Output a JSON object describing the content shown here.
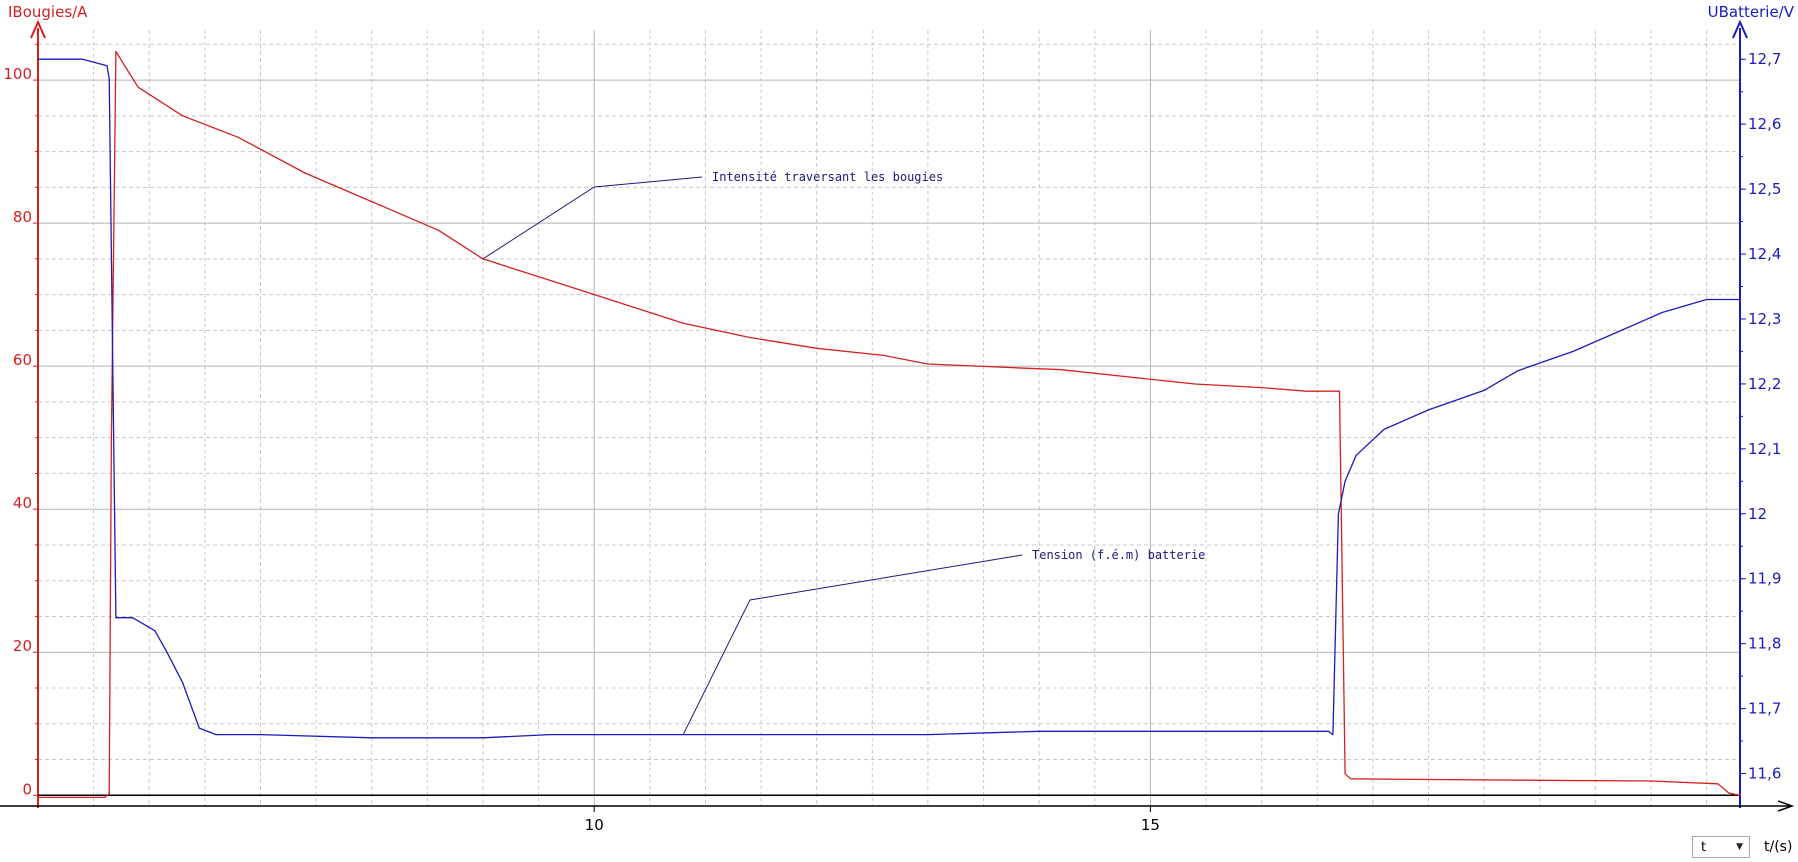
{
  "colors": {
    "current": "#d42020",
    "voltage": "#1b1bbf",
    "annotation": "#1a1a7a",
    "grid_major": "#b4b4b4",
    "grid_minor": "#c8c8c8",
    "axis": "#000000"
  },
  "x_selector": {
    "value": "t",
    "unit_label": "t/(s)"
  },
  "chart_data": {
    "type": "line",
    "left_axis": {
      "label": "IBougies/A",
      "ticks": [
        0,
        20,
        40,
        60,
        80,
        100
      ],
      "ylim": [
        -1.5,
        107
      ],
      "color": "#d42020"
    },
    "right_axis": {
      "label": "UBatterie/V",
      "ticks": [
        "11,6",
        "11,7",
        "11,8",
        "11,9",
        "12",
        "12,1",
        "12,2",
        "12,3",
        "12,4",
        "12,5",
        "12,6",
        "12,7"
      ],
      "ylim": [
        11.55,
        12.745
      ],
      "color": "#1b1bbf"
    },
    "x_axis": {
      "label": "t/(s)",
      "ticks": [
        10,
        15
      ],
      "xlim": [
        5,
        20.3
      ]
    },
    "grid": true,
    "series": [
      {
        "axis": "left",
        "x": [
          5.0,
          5.6,
          5.64,
          5.66,
          5.7,
          5.9,
          6.3,
          6.8,
          7.4,
          8.0,
          8.6,
          9.0,
          9.6,
          10.2,
          10.8,
          11.4,
          12.0,
          12.6,
          13.0,
          13.6,
          14.2,
          14.8,
          15.4,
          16.0,
          16.4,
          16.7,
          16.71,
          16.75,
          16.8,
          17.5,
          18.5,
          19.5,
          20.1,
          20.2,
          20.3
        ],
        "y": [
          -0.3,
          -0.3,
          0.2,
          50,
          104,
          99,
          95,
          92,
          87,
          83,
          79,
          75,
          72,
          69,
          66,
          64,
          62.5,
          61.5,
          60.3,
          59.9,
          59.5,
          58.5,
          57.5,
          57,
          56.5,
          56.5,
          46,
          3,
          2.3,
          2.2,
          2.1,
          2.0,
          1.6,
          0.3,
          0.0
        ]
      },
      {
        "axis": "right",
        "x": [
          5.0,
          5.4,
          5.62,
          5.64,
          5.7,
          5.85,
          6.05,
          6.15,
          6.3,
          6.45,
          6.6,
          7.0,
          8.0,
          9.0,
          9.6,
          10.0,
          11.0,
          12.0,
          13.0,
          14.0,
          15.0,
          16.0,
          16.6,
          16.64,
          16.69,
          16.75,
          16.85,
          17.1,
          17.5,
          18.0,
          18.3,
          18.8,
          19.2,
          19.6,
          20.0,
          20.3
        ],
        "y": [
          12.7,
          12.7,
          12.69,
          12.67,
          11.84,
          11.84,
          11.82,
          11.79,
          11.74,
          11.67,
          11.66,
          11.66,
          11.655,
          11.655,
          11.66,
          11.66,
          11.66,
          11.66,
          11.66,
          11.665,
          11.665,
          11.665,
          11.665,
          11.66,
          12.0,
          12.05,
          12.09,
          12.13,
          12.16,
          12.19,
          12.22,
          12.25,
          12.28,
          12.31,
          12.33,
          12.33
        ]
      }
    ],
    "annotations": [
      "Intensité traversant les bougies",
      "Tension (f.é.m) batterie"
    ]
  }
}
